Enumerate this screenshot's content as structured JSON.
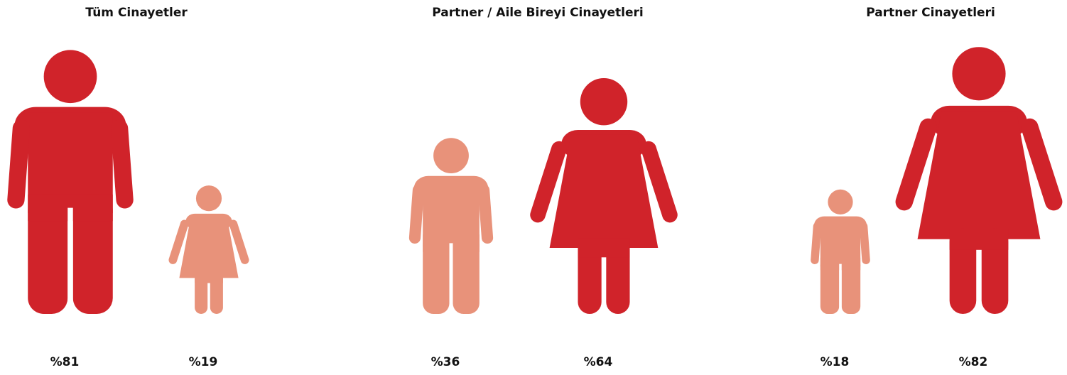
{
  "chart_data": [
    {
      "type": "pictogram",
      "title": "Tüm Cinayetler",
      "values": [
        81,
        19
      ],
      "value_labels": [
        "%81",
        "%19"
      ],
      "shapes": [
        "male",
        "female"
      ],
      "colors": [
        "#d0232a",
        "#e8927a"
      ]
    },
    {
      "type": "pictogram",
      "title": "Partner / Aile Bireyi Cinayetleri",
      "values": [
        36,
        64
      ],
      "value_labels": [
        "%36",
        "%64"
      ],
      "shapes": [
        "male",
        "female"
      ],
      "colors": [
        "#e8927a",
        "#d0232a"
      ]
    },
    {
      "type": "pictogram",
      "title": "Partner Cinayetleri",
      "values": [
        18,
        82
      ],
      "value_labels": [
        "%18",
        "%82"
      ],
      "shapes": [
        "male",
        "female"
      ],
      "colors": [
        "#e8927a",
        "#d0232a"
      ]
    }
  ]
}
